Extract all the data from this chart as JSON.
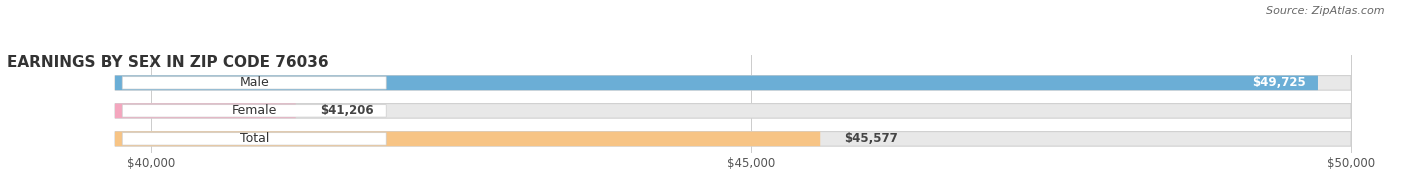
{
  "title": "EARNINGS BY SEX IN ZIP CODE 76036",
  "source": "Source: ZipAtlas.com",
  "categories": [
    "Male",
    "Female",
    "Total"
  ],
  "values": [
    49725,
    41206,
    45577
  ],
  "bar_colors": [
    "#6baed6",
    "#f4a6be",
    "#f7c485"
  ],
  "bar_bg_color": "#e8e8e8",
  "xmin": 40000,
  "xmax": 50000,
  "xticks": [
    40000,
    45000,
    50000
  ],
  "xtick_labels": [
    "$40,000",
    "$45,000",
    "$50,000"
  ],
  "background_color": "#ffffff",
  "title_fontsize": 11,
  "source_fontsize": 8,
  "label_fontsize": 9,
  "value_fontsize": 8.5
}
